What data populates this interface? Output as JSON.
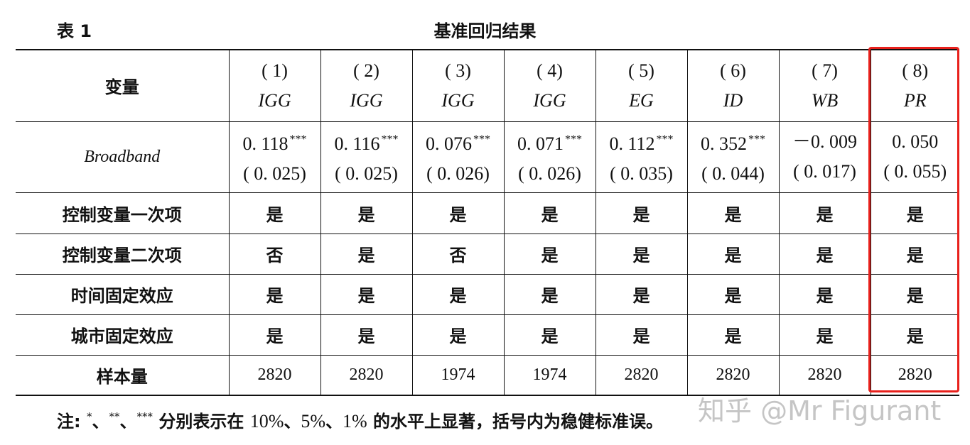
{
  "header": {
    "label": "表 1",
    "title": "基准回归结果"
  },
  "columns": [
    {
      "num": "( 1)",
      "dep": "IGG"
    },
    {
      "num": "( 2)",
      "dep": "IGG"
    },
    {
      "num": "( 3)",
      "dep": "IGG"
    },
    {
      "num": "( 4)",
      "dep": "IGG"
    },
    {
      "num": "( 5)",
      "dep": "EG"
    },
    {
      "num": "( 6)",
      "dep": "ID"
    },
    {
      "num": "( 7)",
      "dep": "WB"
    },
    {
      "num": "( 8)",
      "dep": "PR"
    }
  ],
  "variable_header": "变量",
  "broadband": {
    "label": "Broadband",
    "coef": [
      {
        "value": "0. 118",
        "stars": "***"
      },
      {
        "value": "0. 116",
        "stars": "***"
      },
      {
        "value": "0. 076",
        "stars": "***"
      },
      {
        "value": "0. 071",
        "stars": "***"
      },
      {
        "value": "0. 112",
        "stars": "***"
      },
      {
        "value": "0. 352",
        "stars": "***"
      },
      {
        "value": "－0. 009",
        "stars": ""
      },
      {
        "value": "0. 050",
        "stars": ""
      }
    ],
    "se": [
      "( 0. 025)",
      "( 0. 025)",
      "( 0. 026)",
      "( 0. 026)",
      "( 0. 035)",
      "( 0. 044)",
      "( 0. 017)",
      "( 0. 055)"
    ]
  },
  "rows": [
    {
      "label": "控制变量一次项",
      "values": [
        "是",
        "是",
        "是",
        "是",
        "是",
        "是",
        "是",
        "是"
      ]
    },
    {
      "label": "控制变量二次项",
      "values": [
        "否",
        "是",
        "否",
        "是",
        "是",
        "是",
        "是",
        "是"
      ]
    },
    {
      "label": "时间固定效应",
      "values": [
        "是",
        "是",
        "是",
        "是",
        "是",
        "是",
        "是",
        "是"
      ]
    },
    {
      "label": "城市固定效应",
      "values": [
        "是",
        "是",
        "是",
        "是",
        "是",
        "是",
        "是",
        "是"
      ]
    }
  ],
  "sample": {
    "label": "样本量",
    "values": [
      "2820",
      "2820",
      "1974",
      "1974",
      "2820",
      "2820",
      "2820",
      "2820"
    ]
  },
  "footnote": {
    "prefix": "注:",
    "s1": "*",
    "sep1": "、",
    "s2": "**",
    "sep2": "、",
    "s3": "***",
    "mid": " 分别表示在 ",
    "p1": "10%",
    "sep3": "、",
    "p2": "5%",
    "sep4": "、",
    "p3": "1%",
    "suffix": " 的水平上显著，括号内为稳健标准误。"
  },
  "watermark": "知乎 @Mr Figurant",
  "highlight_color": "#e8211c"
}
